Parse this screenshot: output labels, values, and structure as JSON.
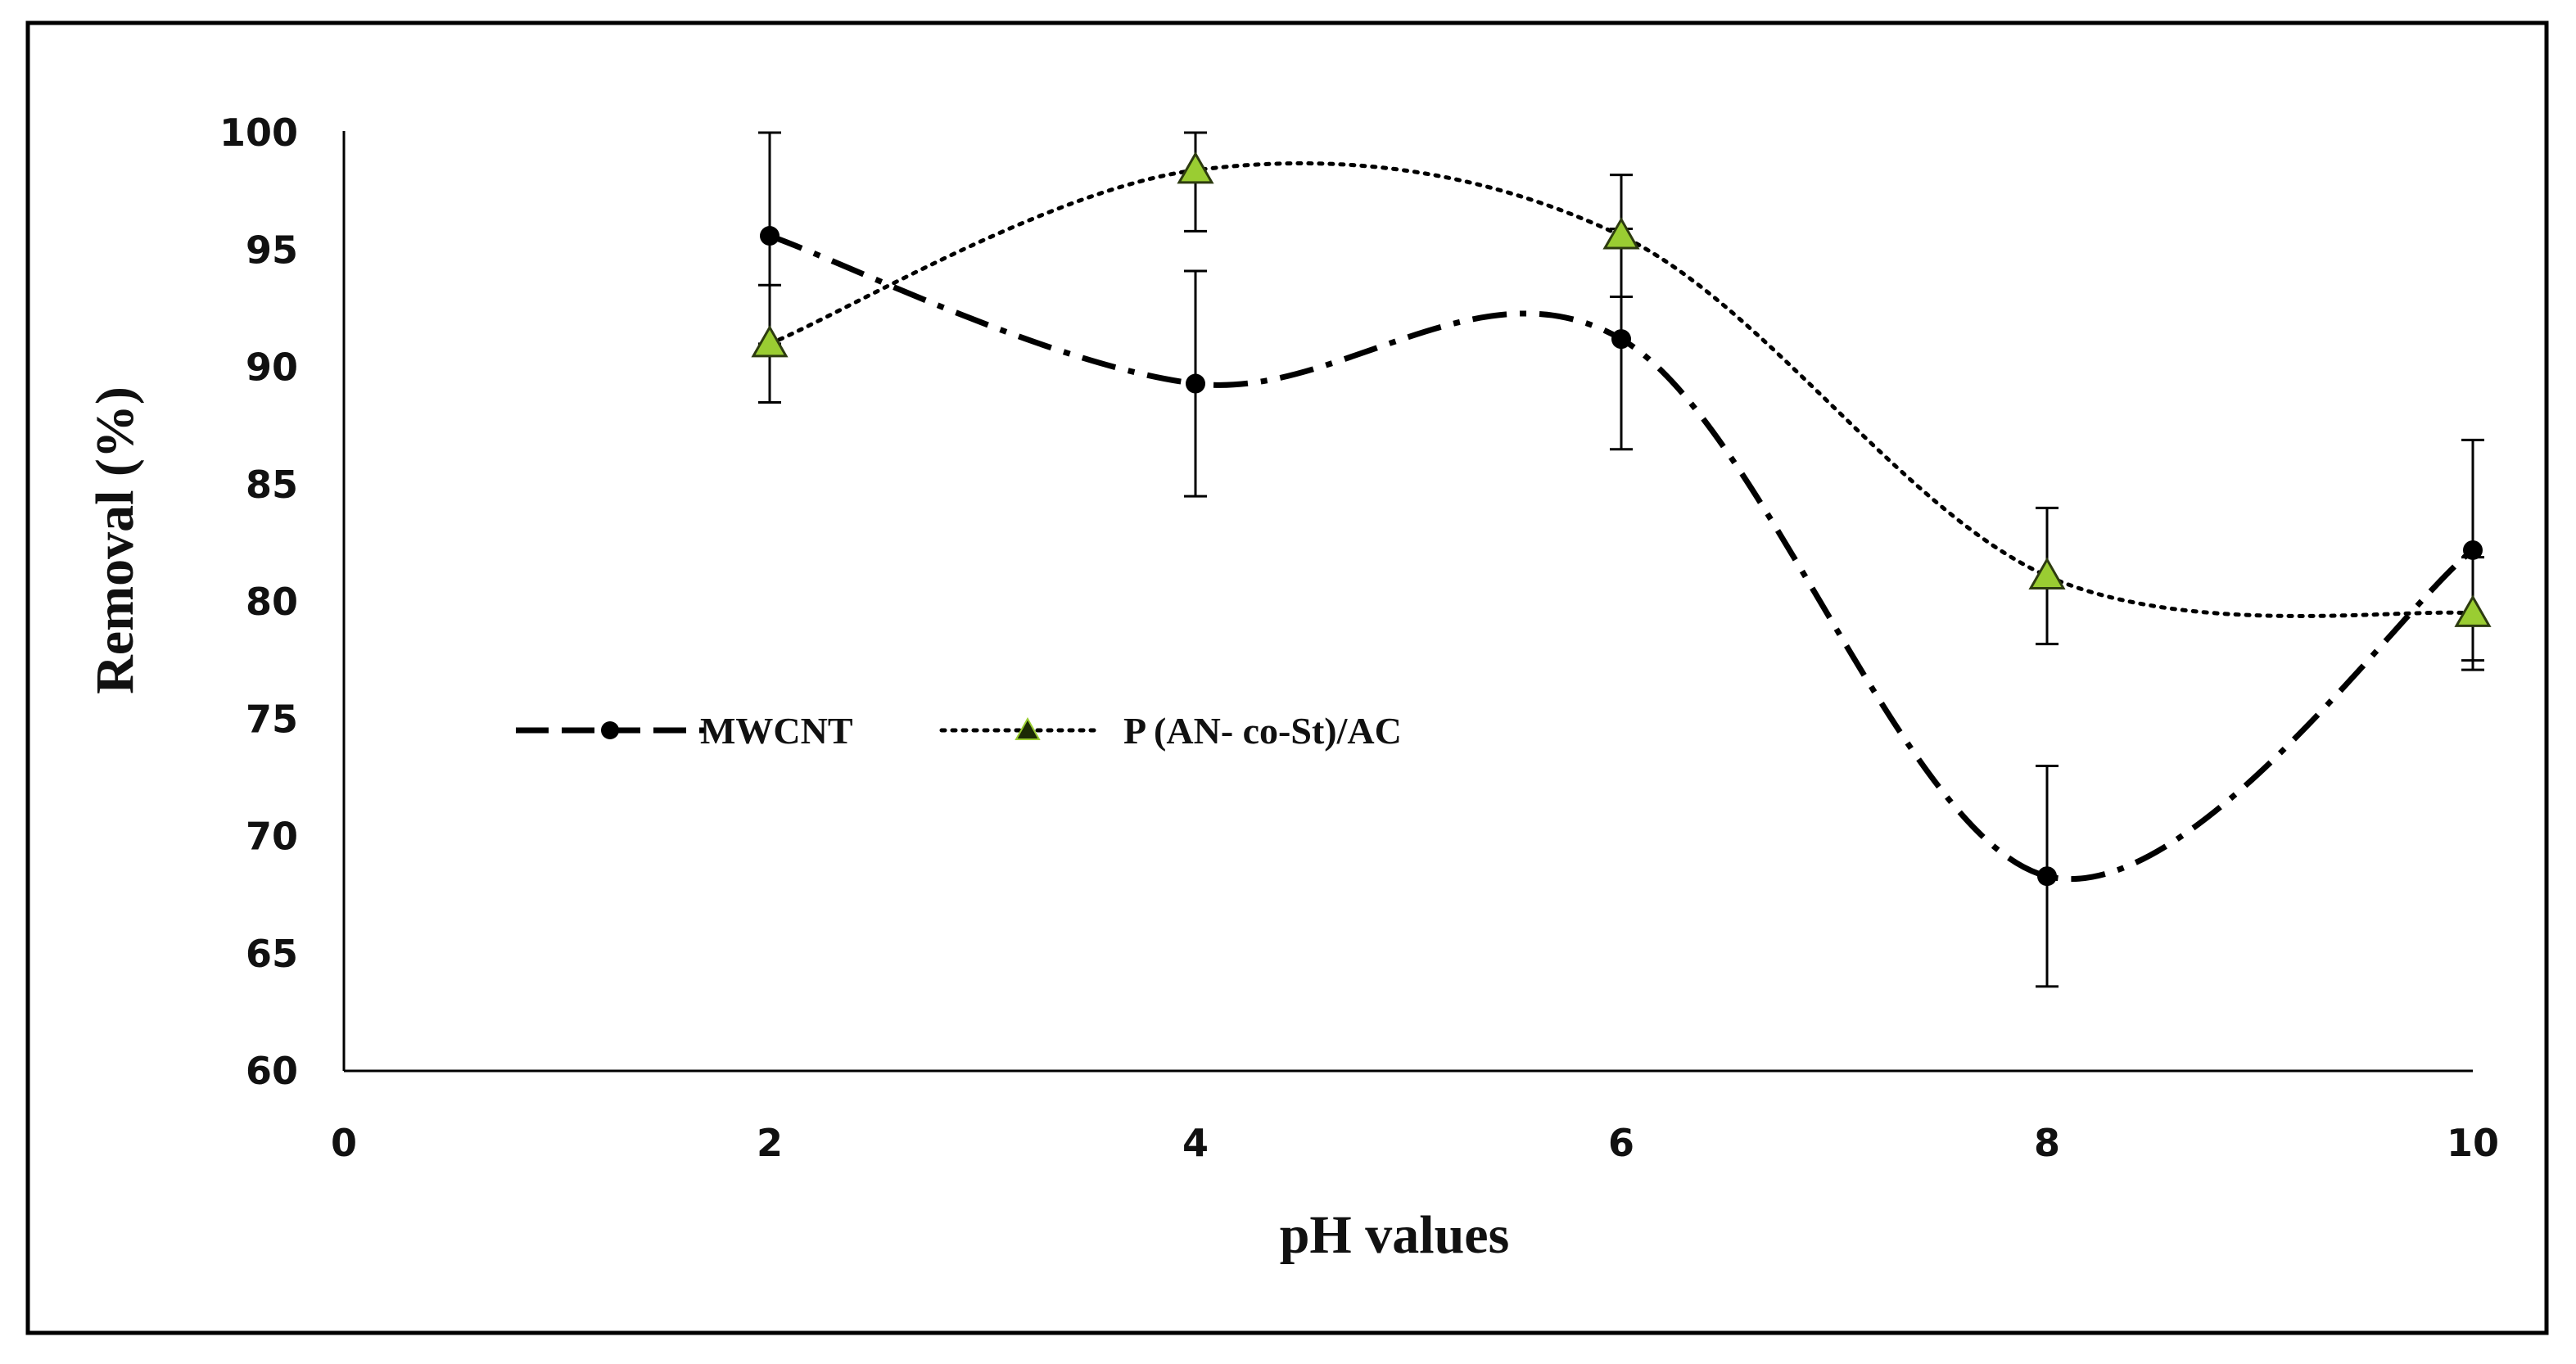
{
  "chart_data": {
    "type": "line",
    "title": "",
    "xlabel": "pH values",
    "ylabel": "Removal (%)",
    "xlim": [
      0,
      10
    ],
    "ylim": [
      60,
      100
    ],
    "xticks": [
      0,
      2,
      4,
      6,
      8,
      10
    ],
    "yticks": [
      60,
      65,
      70,
      75,
      80,
      85,
      90,
      95,
      100
    ],
    "grid": false,
    "legend_position": "center-left",
    "series": [
      {
        "name": "MWCNT",
        "line_style": "dash-dot",
        "marker": "circle",
        "color": "#000000",
        "marker_color": "#000000",
        "x": [
          2,
          4,
          6,
          8,
          10
        ],
        "y": [
          95.6,
          89.3,
          91.2,
          68.3,
          82.2
        ],
        "error": [
          4.6,
          4.8,
          4.7,
          4.7,
          4.7
        ]
      },
      {
        "name": "P (AN- co-St)/AC",
        "line_style": "dotted",
        "marker": "triangle",
        "color": "#000000",
        "marker_color": "#9acd32",
        "x": [
          2,
          4,
          6,
          8,
          10
        ],
        "y": [
          91.0,
          98.4,
          95.6,
          81.1,
          79.5
        ],
        "error": [
          2.5,
          2.6,
          2.6,
          2.9,
          2.4
        ]
      }
    ]
  }
}
